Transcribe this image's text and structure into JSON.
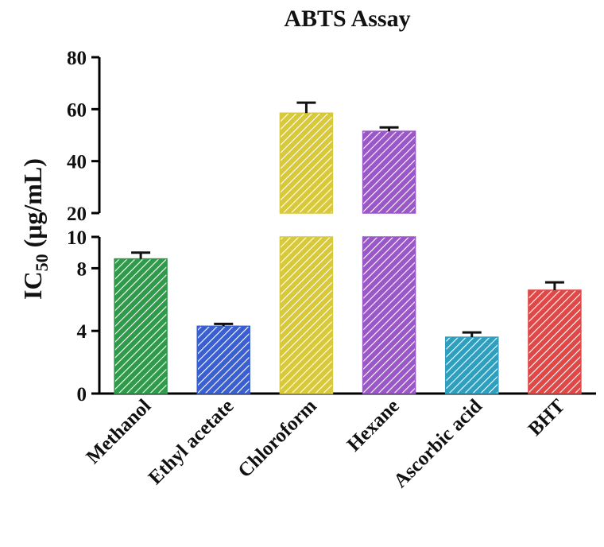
{
  "chart_data": {
    "type": "bar",
    "title": "ABTS Assay",
    "ylabel": "IC",
    "ylabel_subscript": "50",
    "ylabel_unit": " (μg/mL)",
    "categories": [
      "Methanol",
      "Ethyl acetate",
      "Chloroform",
      "Hexane",
      "Ascorbic acid",
      "BHT"
    ],
    "values": [
      8.6,
      4.3,
      58.5,
      51.5,
      3.6,
      6.6
    ],
    "errors": [
      0.4,
      0.15,
      4.0,
      1.5,
      0.3,
      0.5
    ],
    "y_axis_break": {
      "lower_range": [
        0,
        10
      ],
      "upper_range": [
        20,
        80
      ],
      "lower_ticks": [
        0,
        4,
        8,
        10
      ],
      "upper_ticks": [
        20,
        40,
        60,
        80
      ]
    },
    "grid": false,
    "legend": "none",
    "colors": [
      "#2e9a4a",
      "#3a5fd0",
      "#d8c93a",
      "#9a57c8",
      "#2f9fbf",
      "#e04848"
    ]
  }
}
